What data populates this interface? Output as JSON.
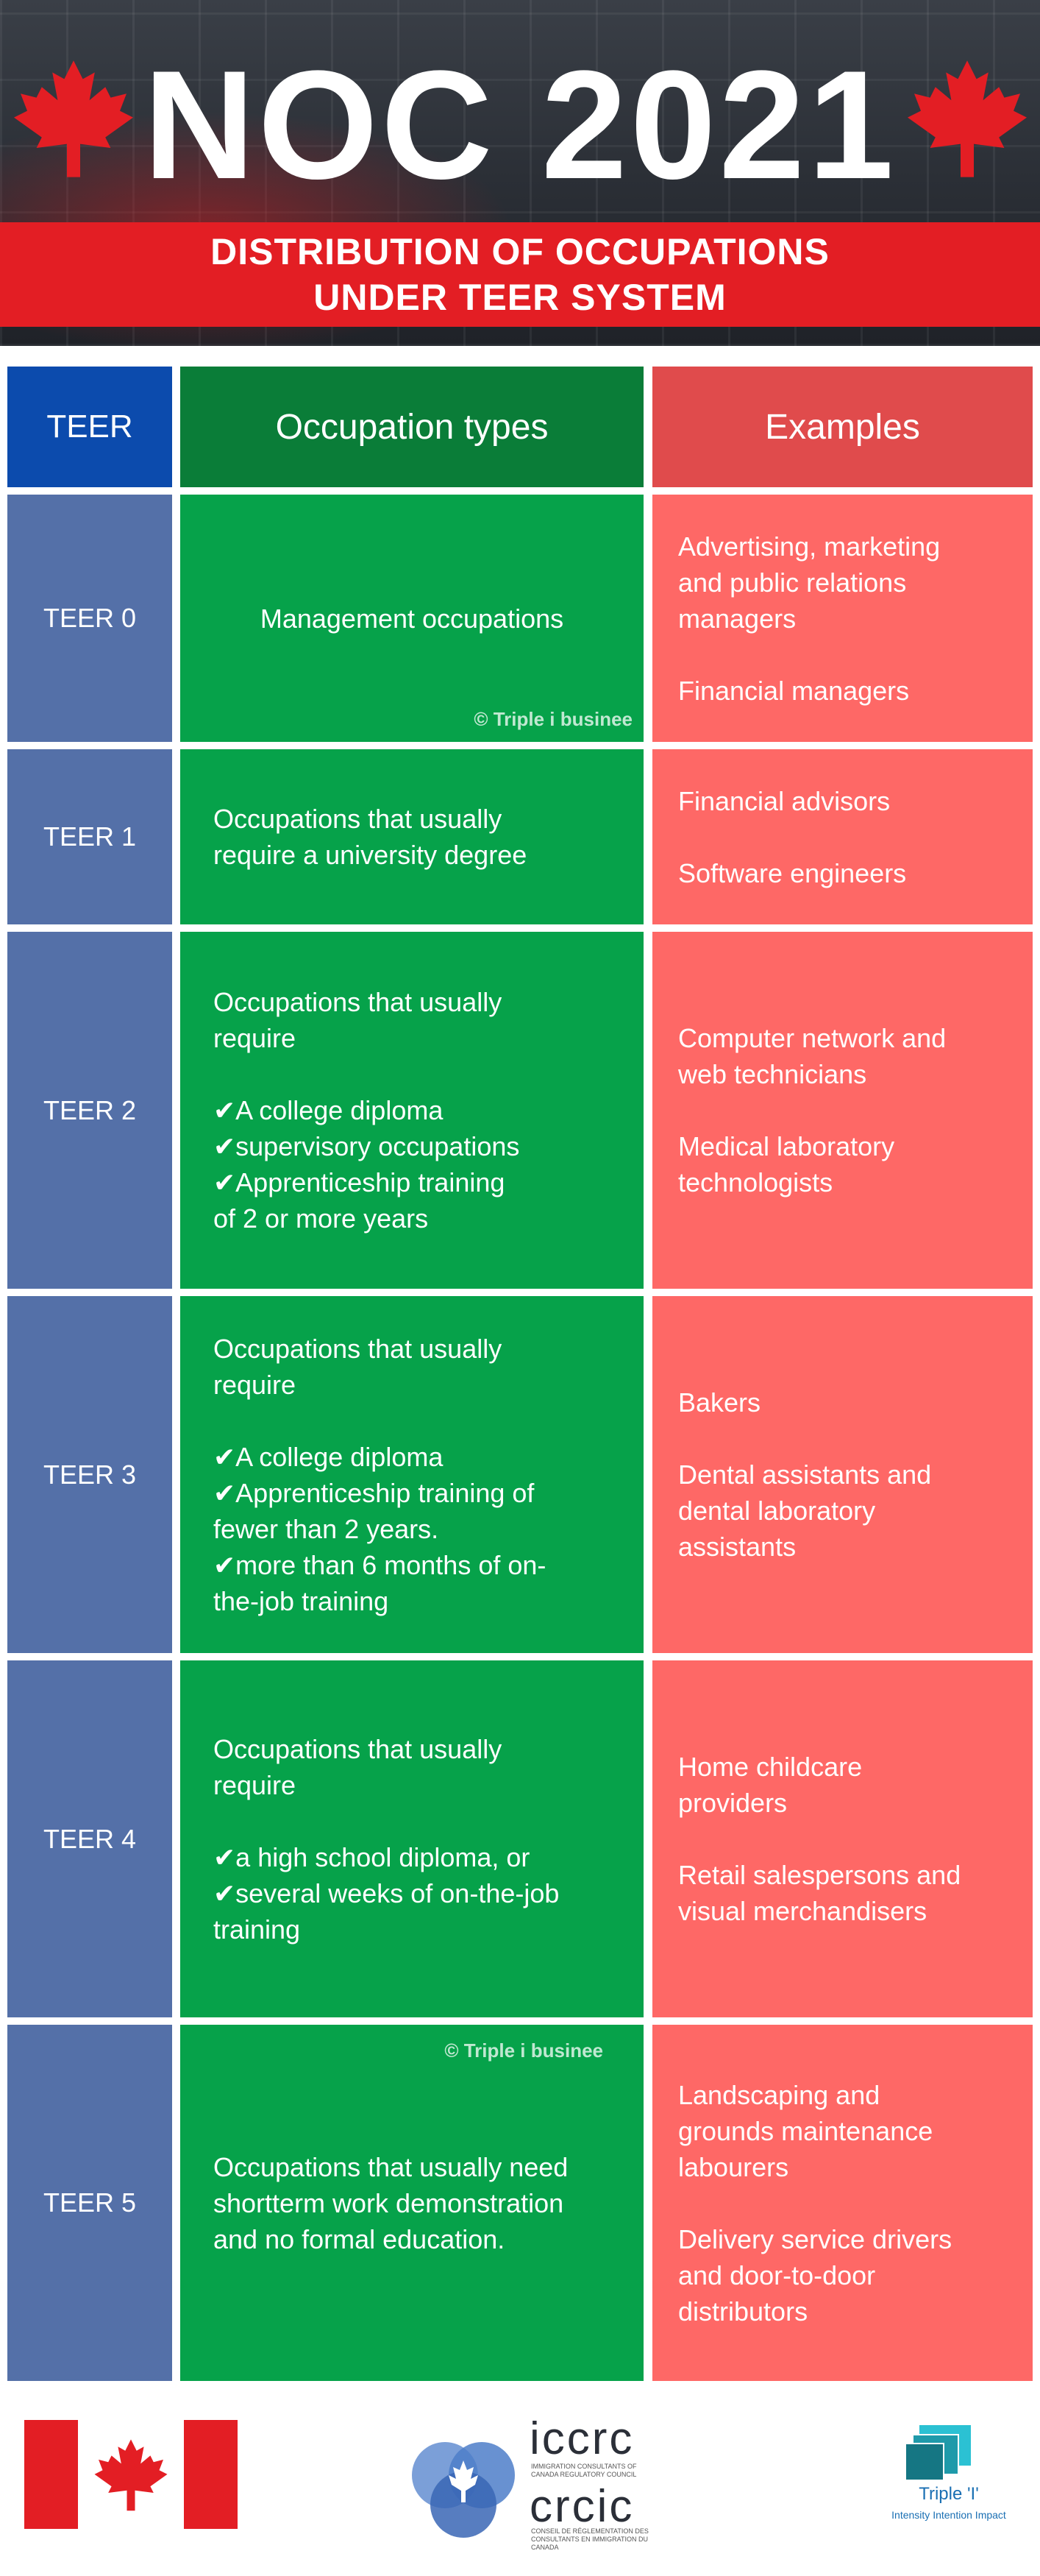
{
  "header": {
    "title": "NOC 2021",
    "subtitle_line1": "DISTRIBUTION OF OCCUPATIONS",
    "subtitle_line2": "UNDER TEER SYSTEM"
  },
  "table": {
    "columns": [
      "TEER",
      "Occupation types",
      "Examples"
    ],
    "rows": [
      {
        "teer": "TEER 0",
        "occupation": "Management occupations",
        "examples": "Advertising, marketing\nand public relations\nmanagers\n\nFinancial managers"
      },
      {
        "teer": "TEER 1",
        "occupation": "Occupations that usually\nrequire a university degree",
        "examples": "Financial advisors\n\nSoftware engineers"
      },
      {
        "teer": "TEER 2",
        "occupation": "Occupations that usually\nrequire\n\n✔A college diploma\n✔supervisory occupations\n✔Apprenticeship training\nof 2 or more years",
        "examples": "Computer network and\nweb technicians\n\nMedical laboratory\ntechnologists"
      },
      {
        "teer": "TEER 3",
        "occupation": "Occupations that usually\nrequire\n\n✔A college diploma\n✔Apprenticeship training of\nfewer than 2 years.\n✔more than 6 months of on-\nthe-job training",
        "examples": "Bakers\n\nDental assistants and\ndental laboratory\nassistants"
      },
      {
        "teer": "TEER 4",
        "occupation": "Occupations that usually\nrequire\n\n✔a high school diploma, or\n✔several weeks of on-the-job\ntraining",
        "examples": "Home childcare\nproviders\n\nRetail salespersons and\nvisual merchandisers"
      },
      {
        "teer": "TEER 5",
        "occupation": "Occupations that usually need\nshortterm work demonstration\nand no formal education.",
        "examples": "Landscaping and\ngrounds maintenance\nlabourers\n\nDelivery service drivers\nand door-to-door\ndistributors"
      }
    ],
    "watermark": "© Triple i businee"
  },
  "footer": {
    "iccrc_name": "iccrc",
    "iccrc_small": "IMMIGRATION CONSULTANTS OF CANADA REGULATORY COUNCIL",
    "crcic_name": "crcic",
    "crcic_small": "CONSEIL DE RÉGLEMENTATION DES CONSULTANTS EN IMMIGRATION DU CANADA",
    "triple_name": "Triple 'I'",
    "triple_tagline": "Intensity Intention Impact"
  },
  "colors": {
    "red": "#e31e24",
    "teer_blue": "#5470a8",
    "occupation_green": "#06a24a",
    "examples_red": "#fe6866"
  }
}
